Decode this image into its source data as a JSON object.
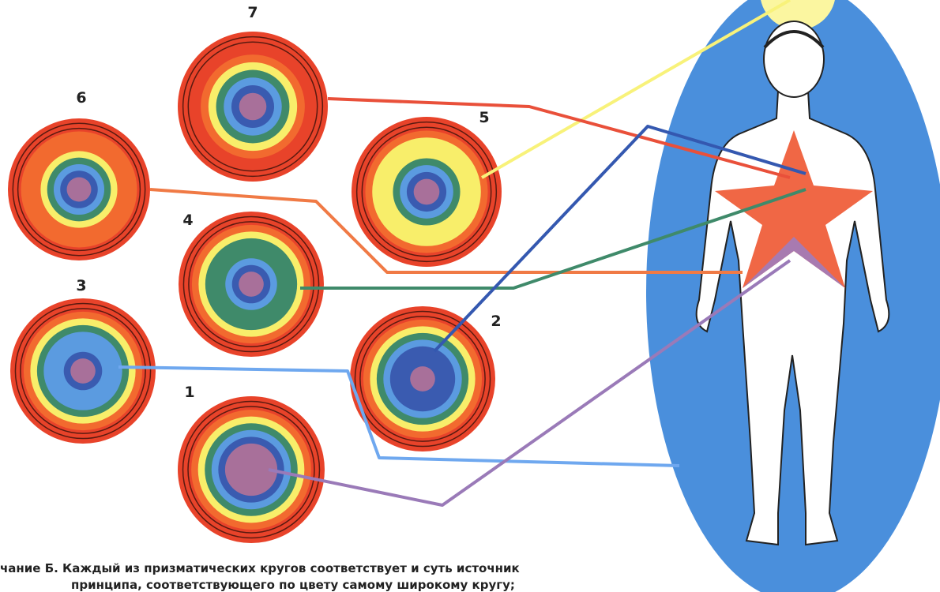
{
  "circles": [
    {
      "label": "7"
    },
    {
      "label": "6"
    },
    {
      "label": "5"
    },
    {
      "label": "4"
    },
    {
      "label": "3"
    },
    {
      "label": "2"
    },
    {
      "label": "1"
    }
  ],
  "caption": {
    "lines": [
      "чание Б. Каждый из призматических кругов соответствует и суть источник",
      "принципа, соответствующего по цвету самому широкому кругу;"
    ]
  }
}
